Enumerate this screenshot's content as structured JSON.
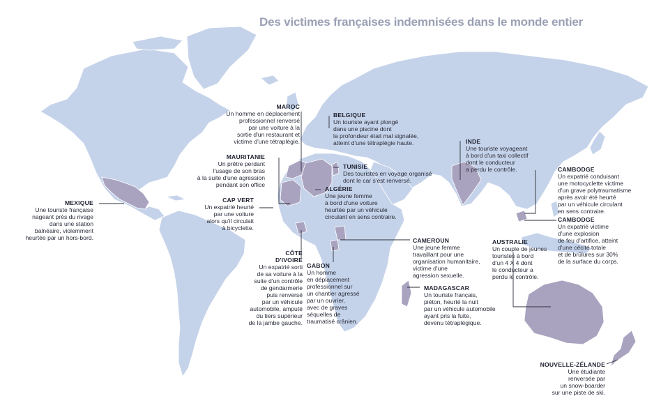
{
  "title": "Des victimes françaises indemnisées dans le monde entier",
  "colors": {
    "ocean": "#ffffff",
    "land": "#c5d3ea",
    "highlight": "#a9a3c0",
    "border": "#ffffff",
    "leader": "#2a2d3a"
  },
  "callouts": [
    {
      "id": "mexique",
      "country": "MEXIQUE",
      "text": "Une touriste française\nnageant près du rivage\ndans une station\nbalnéaire, violemment\nheurtée par un hors-bord."
    },
    {
      "id": "maroc",
      "country": "MAROC",
      "text": "Un homme en déplacement\nprofessionnel renversé\npar une voiture à la\nsortie d'un restaurant et\nvictime d'une tétraplégie."
    },
    {
      "id": "belgique",
      "country": "BELGIQUE",
      "text": "Un touriste ayant plongé\ndans une piscine dont\nla profondeur était mal signalée,\natteint d'une tétraplégie haute."
    },
    {
      "id": "mauritanie",
      "country": "MAURITANIE",
      "text": "Un prêtre perdant\nl'usage de son bras\nà la suite d'une agression\npendant son office"
    },
    {
      "id": "tunisie",
      "country": "TUNISIE",
      "text": "Des touristes en voyage organisé\ndont le car s'est renversé."
    },
    {
      "id": "algerie",
      "country": "ALGÉRIE",
      "text": "Une jeune femme\nà bord d'une voiture\nheurtée par un véhicule\ncirculant en sens contraire."
    },
    {
      "id": "capvert",
      "country": "CAP VERT",
      "text": "Un expatrié heurté\npar une voiture\nalors qu'il circulait\nà bicyclette."
    },
    {
      "id": "inde",
      "country": "INDE",
      "text": "Une touriste voyageant\nà bord d'un taxi collectif\ndont le conducteur\na perdu le contrôle."
    },
    {
      "id": "cambodge1",
      "country": "CAMBODGE",
      "text": "Un expatrié conduisant\nune motocyclette victime\nd'un grave polytraumatisme\naprès avoir été heurté\npar un véhicule circulant\nen sens contraire."
    },
    {
      "id": "cambodge2",
      "country": "CAMBODGE",
      "text": "Un expatrié victime\nd'une explosion\nde feu d'artifice, atteint\nd'une cécité totale\net de brûlures sur 30%\nde la surface du corps."
    },
    {
      "id": "cotedivoire",
      "country": "CÔTE\nD'IVOIRE",
      "text": "Un expatrié sorti\nde sa voiture à la\nsuite d'un contrôle\nde gendarmerie\npuis renversé\npar un véhicule\nautomobile, amputé\ndu tiers supérieur\nde la jambe gauche."
    },
    {
      "id": "gabon",
      "country": "GABON",
      "text": "Un homme\nen déplacement\nprofessionnel sur\nun chantier agressé\npar un ouvrier,\navec de graves\nséquelles de\ntraumatisé crânien."
    },
    {
      "id": "cameroun",
      "country": "CAMEROUN",
      "text": "Une jeune femme\ntravaillant pour une\norganisation humanitaire,\nvictime d'une\nagression sexuelle."
    },
    {
      "id": "madagascar",
      "country": "MADAGASCAR",
      "text": "Un touriste français,\npiéton, heurté la nuit\npar un véhicule automobile\nayant pris la fuite,\ndevenu tétraplégique."
    },
    {
      "id": "australie",
      "country": "AUSTRALIE",
      "text": "Un couple de jeunes\ntouristes à bord\nd'un 4 X 4 dont\nle conducteur a\nperdu le contrôle."
    },
    {
      "id": "nz",
      "country": "NOUVELLE-ZÉLANDE",
      "text": "Une étudiante\nrenversée par\nun snow-boarder\nsur une piste de ski."
    }
  ]
}
